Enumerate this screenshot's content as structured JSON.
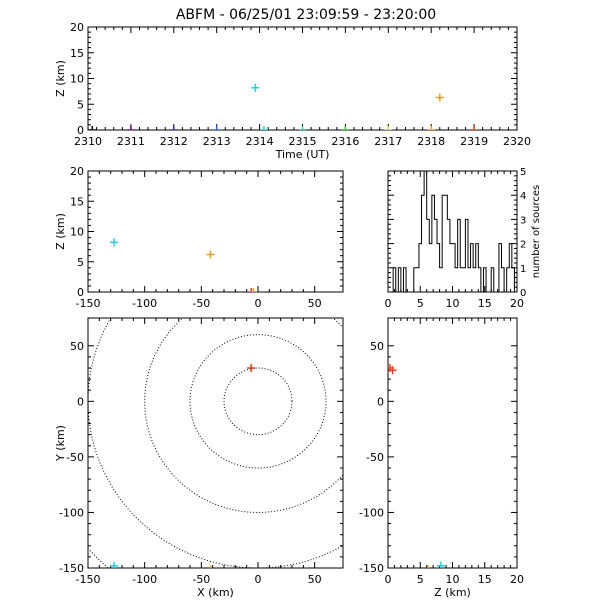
{
  "title": "ABFM - 06/25/01 23:09:59 - 23:20:00",
  "chart_data": [
    {
      "id": "time_height",
      "type": "scatter",
      "xlabel": "Time (UT)",
      "ylabel": "Z (km)",
      "xlim": [
        2310,
        2320
      ],
      "ylim": [
        0,
        20
      ],
      "xticks": [
        2310,
        2311,
        2312,
        2313,
        2314,
        2315,
        2316,
        2317,
        2318,
        2319,
        2320
      ],
      "yticks": [
        0,
        5,
        10,
        15,
        20
      ],
      "points": [
        {
          "x": 2310.1,
          "y": 0.0,
          "color": "#000000"
        },
        {
          "x": 2311.0,
          "y": 0.0,
          "color": "#6a0d8a"
        },
        {
          "x": 2312.0,
          "y": 0.0,
          "color": "#3a2aa8"
        },
        {
          "x": 2313.0,
          "y": 0.0,
          "color": "#2a6ae8"
        },
        {
          "x": 2313.9,
          "y": 8.2,
          "color": "#22d0e8"
        },
        {
          "x": 2314.1,
          "y": 0.0,
          "color": "#22d8e0"
        },
        {
          "x": 2315.0,
          "y": 0.0,
          "color": "#22d8a0"
        },
        {
          "x": 2316.0,
          "y": 0.0,
          "color": "#3ac83a"
        },
        {
          "x": 2317.0,
          "y": 0.0,
          "color": "#c8e030"
        },
        {
          "x": 2318.0,
          "y": 0.0,
          "color": "#f0b030"
        },
        {
          "x": 2318.2,
          "y": 6.3,
          "color": "#f0a020"
        },
        {
          "x": 2319.0,
          "y": 0.0,
          "color": "#e04020"
        }
      ]
    },
    {
      "id": "x_height",
      "type": "scatter",
      "xlabel": "",
      "ylabel": "Z (km)",
      "xlim": [
        -150,
        75
      ],
      "ylim": [
        0,
        20
      ],
      "xticks": [
        -150,
        -100,
        -50,
        0,
        50
      ],
      "yticks": [
        0,
        5,
        10,
        15,
        20
      ],
      "points": [
        {
          "x": -127,
          "y": 8.2,
          "color": "#22d0e8"
        },
        {
          "x": -42,
          "y": 6.2,
          "color": "#f0a020"
        },
        {
          "x": -6,
          "y": 0.0,
          "color": "#e04020"
        },
        {
          "x": -4,
          "y": 0.0,
          "color": "#f0a020"
        }
      ]
    },
    {
      "id": "height_histogram",
      "type": "bar",
      "xlabel": "",
      "ylabel": "number of sources",
      "xlim": [
        0,
        20
      ],
      "ylim": [
        0,
        5
      ],
      "xticks": [
        0,
        5,
        10,
        15,
        20
      ],
      "yticks": [
        0,
        1,
        2,
        3,
        4,
        5
      ],
      "bin_width": 0.4,
      "bin_start": 0,
      "values": [
        0,
        0,
        1,
        0,
        1,
        0,
        1,
        0,
        0,
        0,
        1,
        1,
        2,
        4,
        5,
        3,
        2,
        4,
        3,
        2,
        1,
        4,
        4,
        3,
        2,
        2,
        1,
        3,
        1,
        1,
        3,
        1,
        2,
        1,
        2,
        1,
        0,
        1,
        0,
        0,
        1,
        0,
        0,
        2,
        1,
        0,
        1,
        2,
        1,
        0
      ]
    },
    {
      "id": "plan_view",
      "type": "scatter",
      "xlabel": "X (km)",
      "ylabel": "Y (km)",
      "xlim": [
        -150,
        75
      ],
      "ylim": [
        -150,
        75
      ],
      "xticks": [
        -150,
        -100,
        -50,
        0,
        50
      ],
      "yticks": [
        -150,
        -100,
        -50,
        0,
        50
      ],
      "range_rings_km": [
        30,
        60,
        100,
        150,
        200
      ],
      "points": [
        {
          "x": -6,
          "y": 30,
          "color": "#e04020"
        },
        {
          "x": -127,
          "y": -148,
          "color": "#22d0e8"
        },
        {
          "x": -42,
          "y": -151,
          "color": "#f0a020"
        }
      ]
    },
    {
      "id": "height_y",
      "type": "scatter",
      "xlabel": "Z (km)",
      "ylabel": "",
      "xlim": [
        0,
        20
      ],
      "ylim": [
        -150,
        75
      ],
      "xticks": [
        0,
        5,
        10,
        15,
        20
      ],
      "yticks": [
        -150,
        -100,
        -50,
        0,
        50
      ],
      "points": [
        {
          "x": 0.3,
          "y": 30,
          "color": "#e04020"
        },
        {
          "x": 0.7,
          "y": 28,
          "color": "#e04020"
        },
        {
          "x": 8.2,
          "y": -148,
          "color": "#22d0e8"
        },
        {
          "x": 6.2,
          "y": -151,
          "color": "#f0a020"
        }
      ]
    }
  ]
}
